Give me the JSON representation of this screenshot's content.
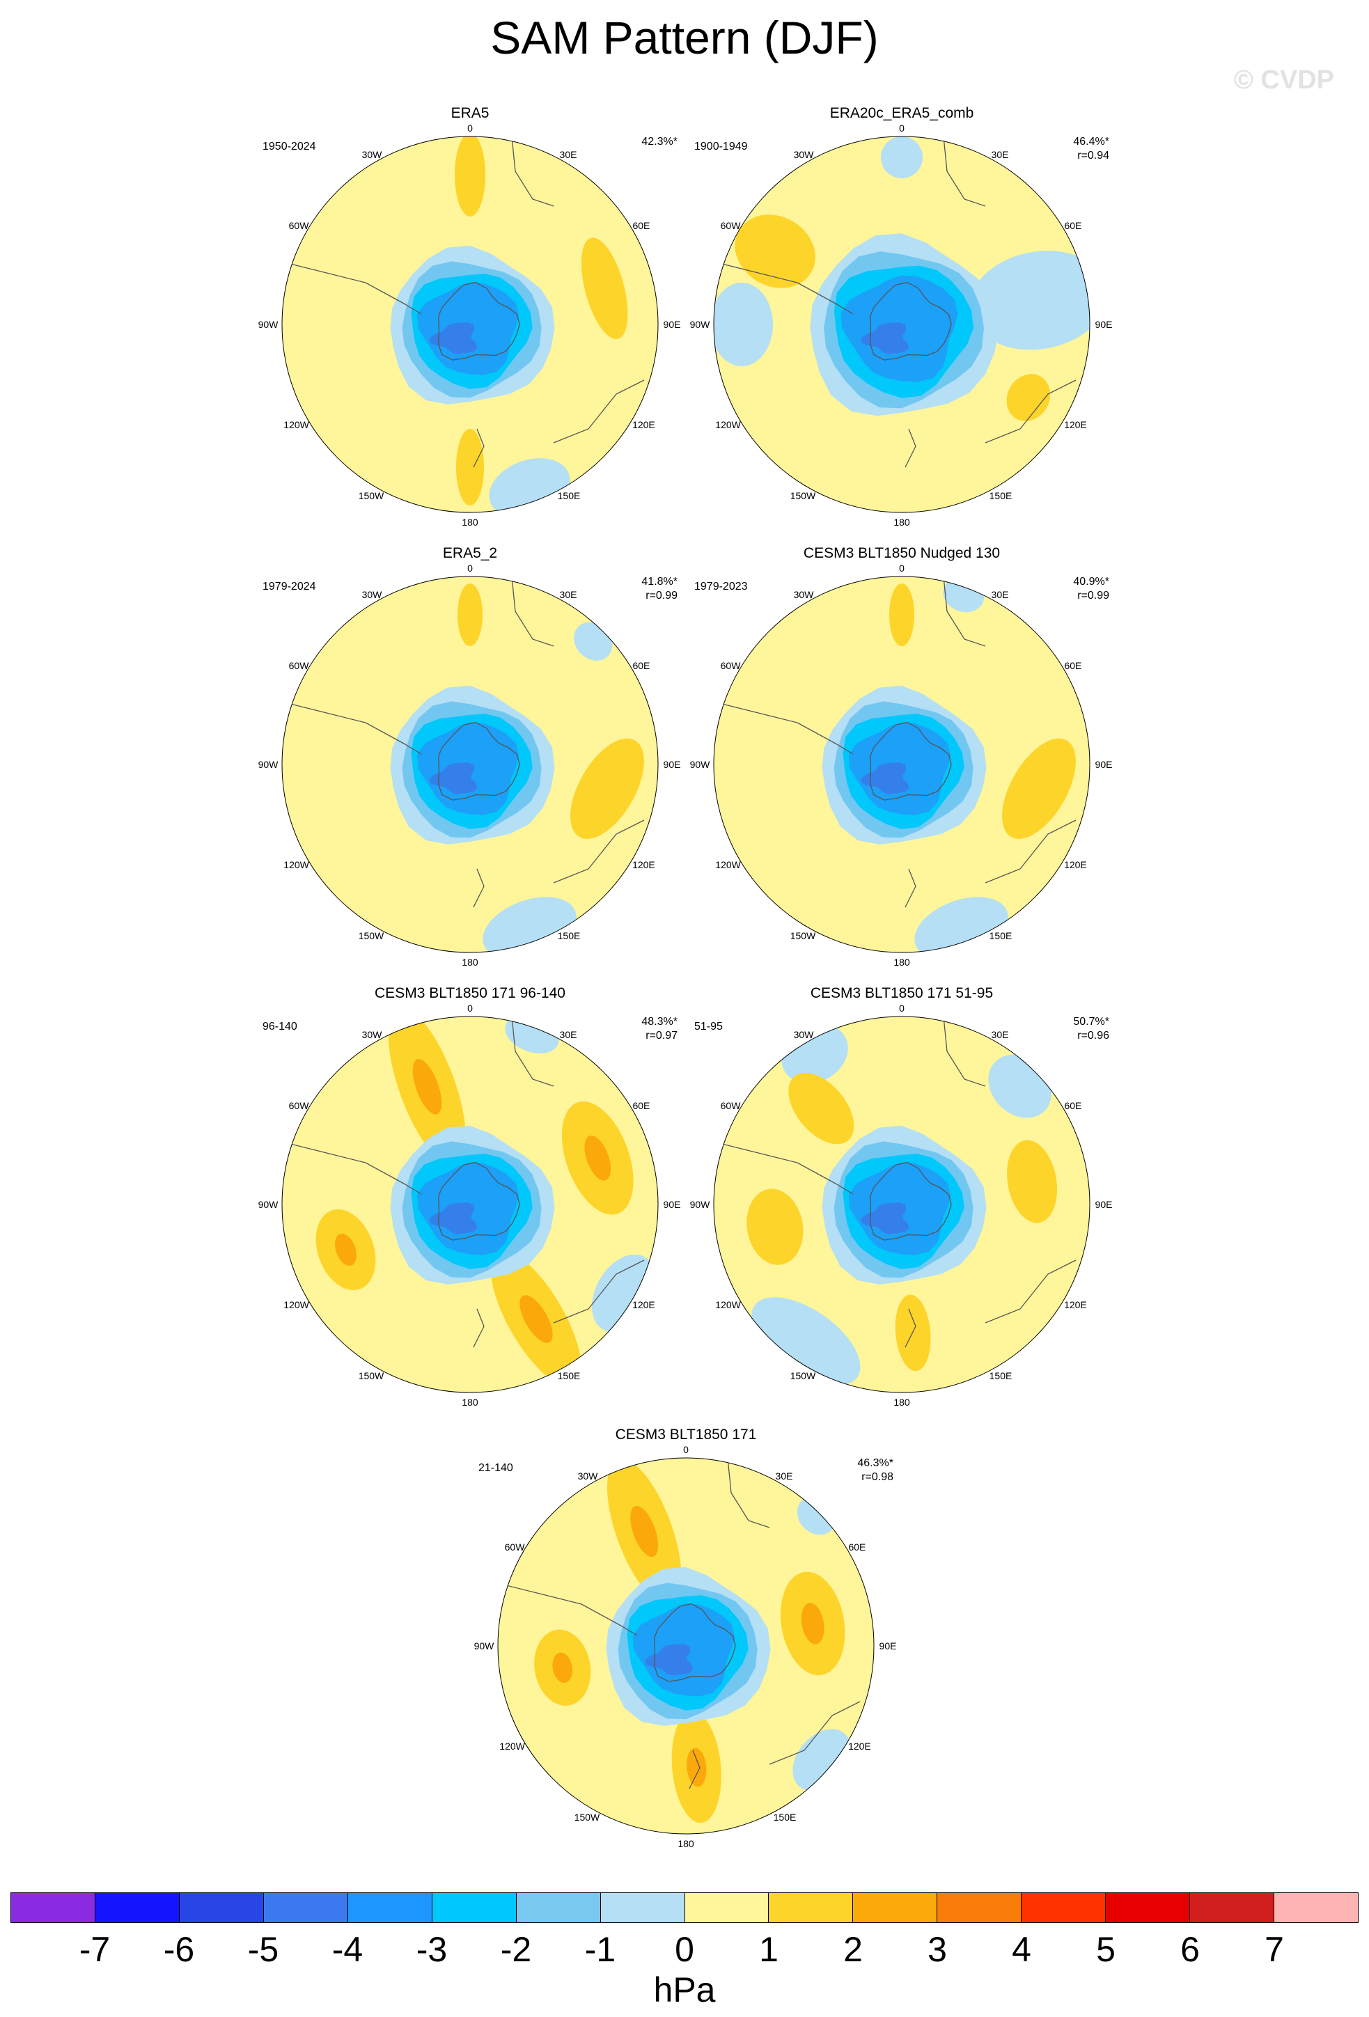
{
  "title": "SAM Pattern (DJF)",
  "watermark": "© CVDP",
  "colors": {
    "pos1": "#fff59a",
    "pos2": "#fdd42a",
    "pos3": "#fba90a",
    "neg1": "#b4dff5",
    "neg2": "#72c7f1",
    "neg3": "#00c8fa",
    "neg4": "#1da0f7",
    "neg5": "#357fea",
    "land": "#555555"
  },
  "map_labels": {
    "top": "0",
    "lon30w": "30W",
    "lon30e": "30E",
    "lon60w": "60W",
    "lon60e": "60E",
    "lon90w": "90W",
    "lon90e": "90E",
    "lon120w": "120W",
    "lon120e": "120E",
    "lon150w": "150W",
    "lon150e": "150E",
    "bottom": "180"
  },
  "panels": [
    {
      "title": "ERA5",
      "period": "1950-2024",
      "pct": "42.3%*",
      "r": ""
    },
    {
      "title": "ERA20c_ERA5_comb",
      "period": "1900-1949",
      "pct": "46.4%*",
      "r": "r=0.94"
    },
    {
      "title": "ERA5_2",
      "period": "1979-2024",
      "pct": "41.8%*",
      "r": "r=0.99"
    },
    {
      "title": "CESM3 BLT1850 Nudged 130",
      "period": "1979-2023",
      "pct": "40.9%*",
      "r": "r=0.99"
    },
    {
      "title": "CESM3 BLT1850 171 96-140",
      "period": "96-140",
      "pct": "48.3%*",
      "r": "r=0.97"
    },
    {
      "title": "CESM3 BLT1850 171 51-95",
      "period": "51-95",
      "pct": "50.7%*",
      "r": "r=0.96"
    },
    {
      "title": "CESM3 BLT1850 171",
      "period": "21-140",
      "pct": "46.3%*",
      "r": "r=0.98"
    }
  ],
  "colorbar": {
    "colors": [
      "#8a2be2",
      "#1414ff",
      "#2846e6",
      "#3c78f0",
      "#1e96ff",
      "#00c8ff",
      "#78c8f0",
      "#b4dff5",
      "#fff59a",
      "#fdd42a",
      "#fbaa0a",
      "#fa7d0a",
      "#ff3200",
      "#e60000",
      "#d21e1e",
      "#ffb4b4"
    ],
    "ticks": [
      "-7",
      "-6",
      "-5",
      "-4",
      "-3",
      "-2",
      "-1",
      "0",
      "1",
      "2",
      "3",
      "4",
      "5",
      "6",
      "7"
    ],
    "units": "hPa"
  }
}
